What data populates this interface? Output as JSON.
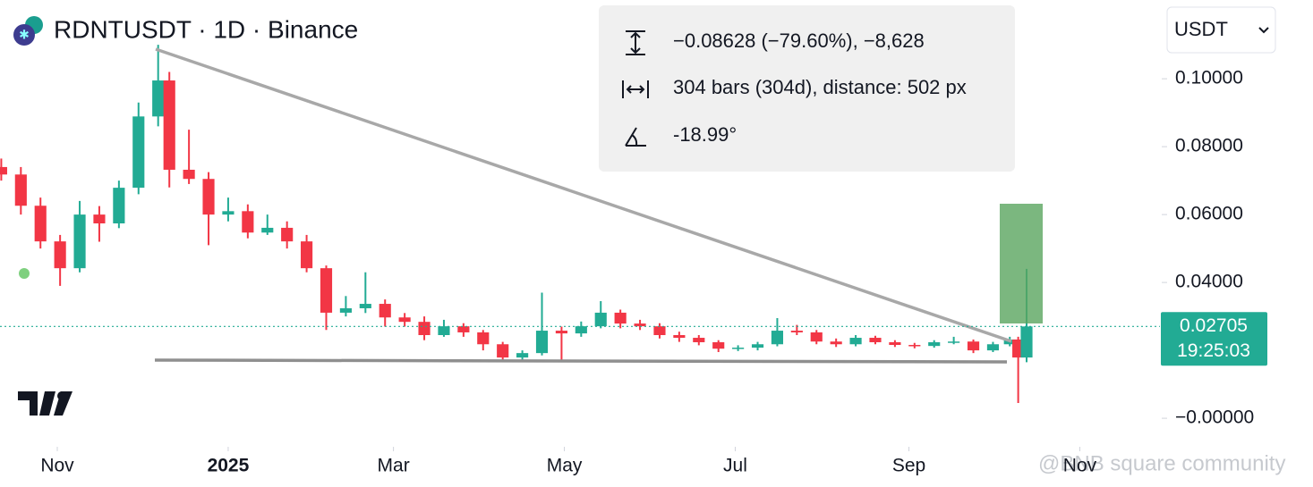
{
  "chart_data": {
    "type": "candlestick",
    "title": "RDNTUSDT · 1D · Binance",
    "currency": "USDT",
    "measure": [
      "−0.08628 (−79.60%), −8,628",
      "304 bars (304d), distance: 502 px",
      "-18.99°"
    ],
    "countdown": "19:25:03",
    "watermark": "@BNB square community",
    "up_color": "#22ab94",
    "down_color": "#f23645",
    "xlim": [
      -20.45,
      393.6
    ],
    "ylim": [
      -0.0084,
      0.1232
    ],
    "xticks": [
      {
        "value": 0,
        "label": "Nov"
      },
      {
        "value": 61,
        "label": "2025",
        "bold": true
      },
      {
        "value": 120,
        "label": "Mar"
      },
      {
        "value": 181,
        "label": "May"
      },
      {
        "value": 242,
        "label": "Jul"
      },
      {
        "value": 304,
        "label": "Sep"
      },
      {
        "value": 365,
        "label": "Nov"
      }
    ],
    "yticks": [
      {
        "value": 0.1,
        "label": "0.10000"
      },
      {
        "value": 0.08,
        "label": "0.08000"
      },
      {
        "value": 0.06,
        "label": "0.06000"
      },
      {
        "value": 0.04,
        "label": "0.04000"
      },
      {
        "value": 0,
        "label": "−0.00000"
      }
    ],
    "x": [
      -20,
      -13,
      -6,
      1,
      8,
      15,
      22,
      29,
      36,
      40,
      47,
      54,
      61,
      68,
      75,
      82,
      89,
      96,
      103,
      110,
      117,
      124,
      131,
      138,
      145,
      152,
      159,
      166,
      173,
      180,
      187,
      194,
      201,
      208,
      215,
      222,
      229,
      236,
      243,
      250,
      257,
      264,
      271,
      278,
      285,
      292,
      299,
      306,
      313,
      320,
      327,
      334,
      340,
      343,
      346
    ],
    "open": [
      0.074,
      0.0718,
      0.0626,
      0.0521,
      0.0442,
      0.06,
      0.0574,
      0.0679,
      0.0889,
      0.0995,
      0.0732,
      0.0705,
      0.06,
      0.061,
      0.0547,
      0.0561,
      0.0521,
      0.0442,
      0.0311,
      0.0324,
      0.0337,
      0.0297,
      0.0284,
      0.0245,
      0.0271,
      0.0253,
      0.0218,
      0.0179,
      0.0192,
      0.0258,
      0.025,
      0.0271,
      0.0311,
      0.0279,
      0.0271,
      0.0245,
      0.0237,
      0.0224,
      0.0205,
      0.0208,
      0.0218,
      0.0258,
      0.0253,
      0.0226,
      0.0218,
      0.0237,
      0.0224,
      0.0216,
      0.0213,
      0.0224,
      0.0226,
      0.02,
      0.0218,
      0.0232,
      0.0179
    ],
    "high": [
      0.0765,
      0.074,
      0.065,
      0.054,
      0.064,
      0.0625,
      0.07,
      0.093,
      0.11,
      0.102,
      0.085,
      0.0725,
      0.065,
      0.063,
      0.06,
      0.058,
      0.054,
      0.045,
      0.036,
      0.043,
      0.035,
      0.031,
      0.03,
      0.029,
      0.028,
      0.026,
      0.0225,
      0.02,
      0.037,
      0.027,
      0.0285,
      0.0345,
      0.032,
      0.029,
      0.028,
      0.0255,
      0.0245,
      0.023,
      0.0215,
      0.0225,
      0.0295,
      0.0275,
      0.026,
      0.0235,
      0.0245,
      0.0243,
      0.023,
      0.0222,
      0.023,
      0.024,
      0.0232,
      0.0225,
      0.024,
      0.024,
      0.044
    ],
    "low": [
      0.07,
      0.06,
      0.05,
      0.039,
      0.043,
      0.052,
      0.056,
      0.066,
      0.086,
      0.068,
      0.069,
      0.051,
      0.058,
      0.053,
      0.054,
      0.05,
      0.043,
      0.026,
      0.03,
      0.031,
      0.027,
      0.027,
      0.023,
      0.024,
      0.024,
      0.02,
      0.0165,
      0.017,
      0.0185,
      0.0165,
      0.024,
      0.0265,
      0.0265,
      0.026,
      0.0235,
      0.0225,
      0.0215,
      0.0195,
      0.0198,
      0.02,
      0.0212,
      0.0245,
      0.0218,
      0.021,
      0.0212,
      0.0218,
      0.021,
      0.0206,
      0.0208,
      0.0218,
      0.0192,
      0.0195,
      0.0212,
      0.0045,
      0.0165
    ],
    "close": [
      0.0718,
      0.0626,
      0.0521,
      0.0442,
      0.06,
      0.0574,
      0.0679,
      0.0889,
      0.0995,
      0.0732,
      0.0705,
      0.06,
      0.061,
      0.0547,
      0.0561,
      0.0521,
      0.0442,
      0.0311,
      0.0324,
      0.0337,
      0.0297,
      0.0284,
      0.0245,
      0.0271,
      0.0253,
      0.0218,
      0.0179,
      0.0192,
      0.0258,
      0.025,
      0.0271,
      0.0311,
      0.0279,
      0.0271,
      0.0245,
      0.0237,
      0.0224,
      0.0205,
      0.0208,
      0.0218,
      0.0258,
      0.0253,
      0.0226,
      0.0218,
      0.0237,
      0.0224,
      0.0216,
      0.0213,
      0.0224,
      0.0226,
      0.02,
      0.0218,
      0.0232,
      0.0179,
      0.02705
    ]
  }
}
